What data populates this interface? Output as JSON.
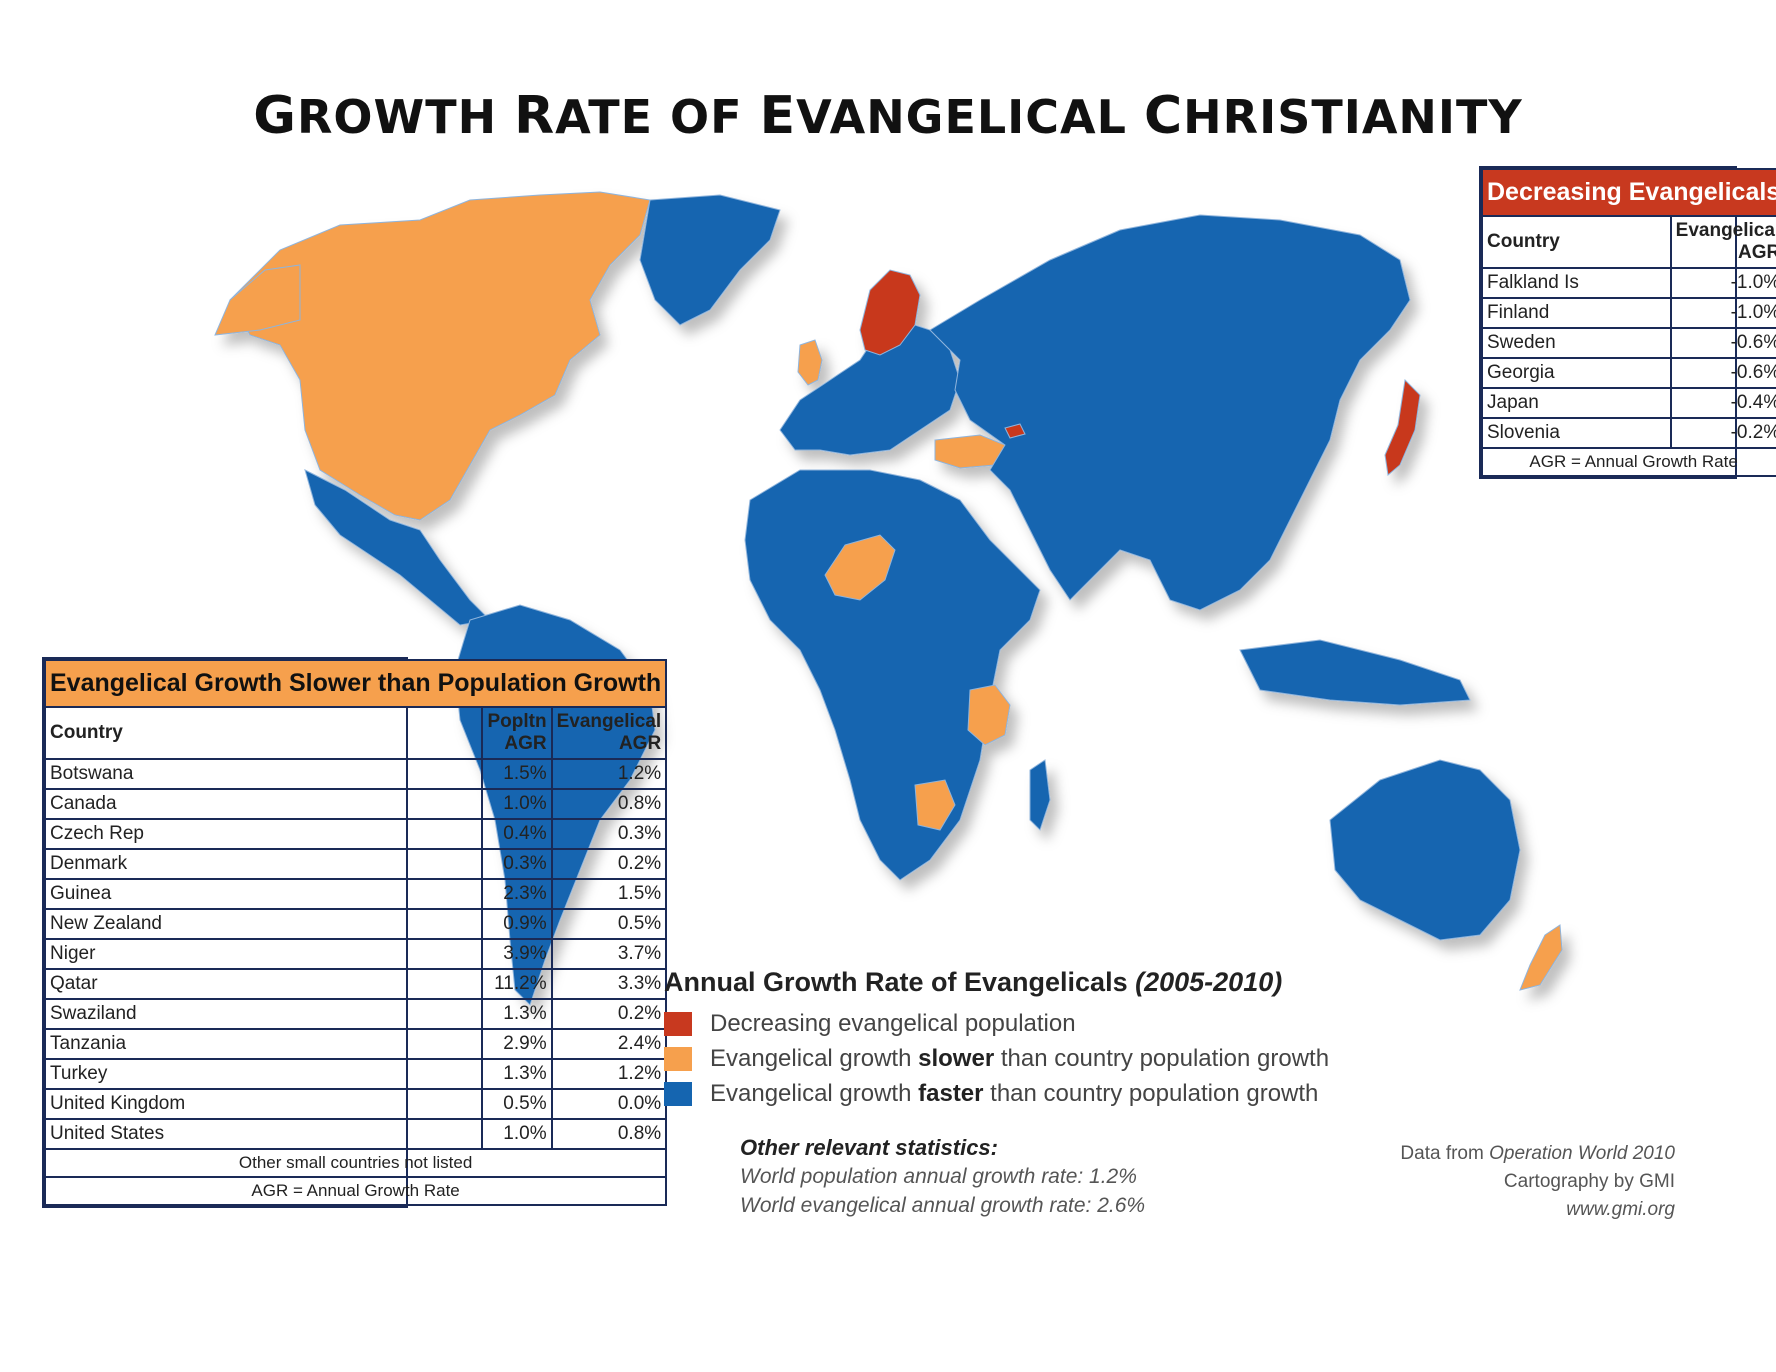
{
  "title": {
    "first_letter_1": "G",
    "rest_1": "ROWTH ",
    "word2_first": "R",
    "word2_rest": "ATE ",
    "word3": "OF ",
    "word4_first": "E",
    "word4_rest": "VANGELICAL ",
    "word5_first": "C",
    "word5_rest": "HRISTIANITY"
  },
  "colors": {
    "decreasing": "#c8391f",
    "slower": "#f6a04d",
    "faster": "#1565b0",
    "table_border": "#1a2a57"
  },
  "decreasing_table": {
    "heading": "Decreasing Evangelicals",
    "col_country": "Country",
    "col_agr": "Evangelical AGR",
    "rows": [
      {
        "country": "Falkland Is",
        "agr": "-1.0%"
      },
      {
        "country": "Finland",
        "agr": "-1.0%"
      },
      {
        "country": "Sweden",
        "agr": "-0.6%"
      },
      {
        "country": "Georgia",
        "agr": "-0.6%"
      },
      {
        "country": "Japan",
        "agr": "-0.4%"
      },
      {
        "country": "Slovenia",
        "agr": "-0.2%"
      }
    ],
    "footer": "AGR = Annual Growth Rate"
  },
  "slower_table": {
    "heading": "Evangelical Growth Slower than Population Growth",
    "col_country": "Country",
    "col_pop": "Popltn AGR",
    "col_evang": "Evangelical AGR",
    "rows": [
      {
        "country": "Botswana",
        "pop": "1.5%",
        "evang": "1.2%"
      },
      {
        "country": "Canada",
        "pop": "1.0%",
        "evang": "0.8%"
      },
      {
        "country": "Czech Rep",
        "pop": "0.4%",
        "evang": "0.3%"
      },
      {
        "country": "Denmark",
        "pop": "0.3%",
        "evang": "0.2%"
      },
      {
        "country": "Guinea",
        "pop": "2.3%",
        "evang": "1.5%"
      },
      {
        "country": "New Zealand",
        "pop": "0.9%",
        "evang": "0.5%"
      },
      {
        "country": "Niger",
        "pop": "3.9%",
        "evang": "3.7%"
      },
      {
        "country": "Qatar",
        "pop": "11.2%",
        "evang": "3.3%"
      },
      {
        "country": "Swaziland",
        "pop": "1.3%",
        "evang": "0.2%"
      },
      {
        "country": "Tanzania",
        "pop": "2.9%",
        "evang": "2.4%"
      },
      {
        "country": "Turkey",
        "pop": "1.3%",
        "evang": "1.2%"
      },
      {
        "country": "United Kingdom",
        "pop": "0.5%",
        "evang": "0.0%"
      },
      {
        "country": "United States",
        "pop": "1.0%",
        "evang": "0.8%"
      }
    ],
    "footer1": "Other small countries not listed",
    "footer2": "AGR = Annual Growth Rate"
  },
  "legend": {
    "title": "Annual Growth Rate of Evangelicals",
    "years": "(2005-2010)",
    "item1": "Decreasing evangelical population",
    "item2_a": "Evangelical growth ",
    "item2_b": "slower",
    "item2_c": " than country population growth",
    "item3_a": "Evangelical growth ",
    "item3_b": "faster",
    "item3_c": " than country population growth"
  },
  "stats": {
    "heading": "Other relevant statistics:",
    "line1": "World population annual growth rate:  1.2%",
    "line2": "World evangelical annual growth rate:  2.6%"
  },
  "credits": {
    "line1_a": "Data from ",
    "line1_b": "Operation World 2010",
    "line2": "Cartography by GMI",
    "line3": "www.gmi.org"
  }
}
